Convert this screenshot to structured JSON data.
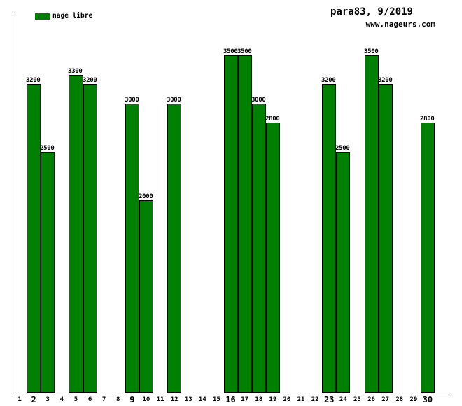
{
  "header": {
    "title": "para83, 9/2019",
    "watermark": "www.nageurs.com"
  },
  "legend": {
    "label": "nage libre",
    "color": "#008000"
  },
  "chart_data": {
    "type": "bar",
    "title": "para83, 9/2019",
    "xlabel": "",
    "ylabel": "",
    "categories": [
      1,
      2,
      3,
      4,
      5,
      6,
      7,
      8,
      9,
      10,
      11,
      12,
      13,
      14,
      15,
      16,
      17,
      18,
      19,
      20,
      21,
      22,
      23,
      24,
      25,
      26,
      27,
      28,
      29,
      30
    ],
    "series": [
      {
        "name": "nage libre",
        "color": "#008000",
        "values": [
          null,
          3200,
          2500,
          null,
          3300,
          3200,
          null,
          null,
          3000,
          2000,
          null,
          3000,
          null,
          null,
          null,
          3500,
          3500,
          3000,
          2800,
          null,
          null,
          null,
          3200,
          2500,
          null,
          3500,
          3200,
          null,
          null,
          2800
        ]
      }
    ],
    "bold_categories": [
      2,
      9,
      16,
      23,
      30
    ],
    "ylim": [
      0,
      3500
    ],
    "grid": false,
    "legend_position": "top-left",
    "bar_border_color": "#000000",
    "value_labels": true
  }
}
